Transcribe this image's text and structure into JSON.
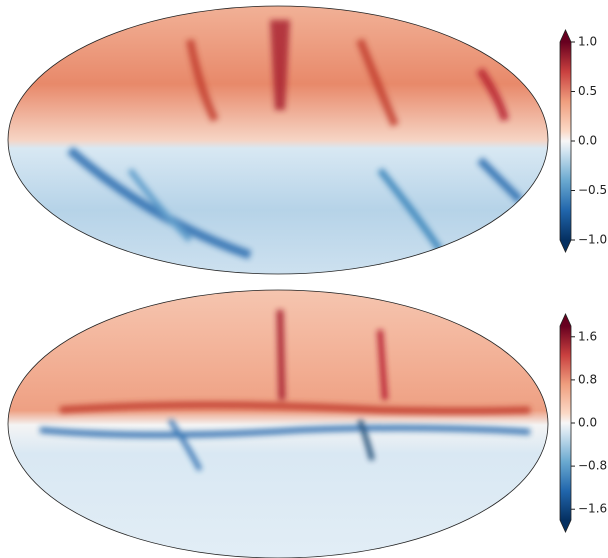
{
  "chart_data": [
    {
      "type": "map",
      "clim": [
        -1,
        1
      ],
      "cticks": [
        {
          "value": 1,
          "label": "1.0"
        },
        {
          "value": 0.5,
          "label": "0.5"
        },
        {
          "value": 0,
          "label": "0.0"
        },
        {
          "value": -0.5,
          "label": "−0.5"
        },
        {
          "value": -1,
          "label": "−1.0"
        }
      ]
    },
    {
      "type": "map",
      "clim": [
        -1.8,
        1.8
      ],
      "cticks": [
        {
          "value": 1.6,
          "label": "1.6"
        },
        {
          "value": 0.8,
          "label": "0.8"
        },
        {
          "value": 0,
          "label": "0.0"
        },
        {
          "value": -0.8,
          "label": "−0.8"
        },
        {
          "value": -1.6,
          "label": "−1.6"
        }
      ]
    }
  ]
}
